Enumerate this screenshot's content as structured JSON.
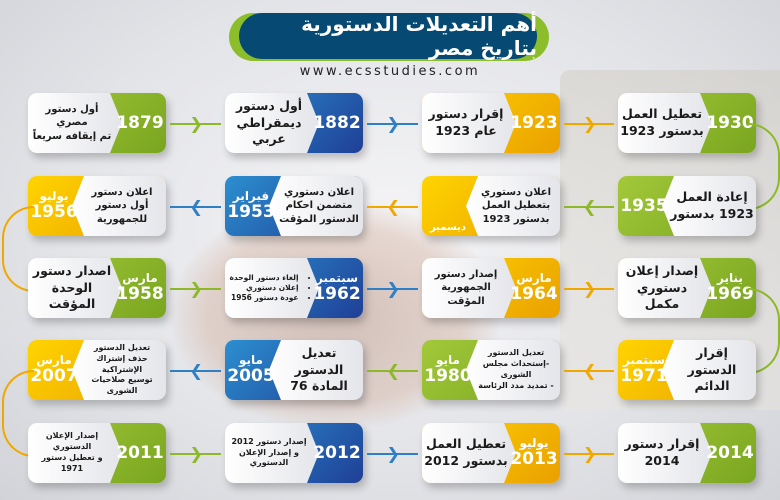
{
  "header": {
    "title": "أهم التعديلات الدستورية بتاريخ مصر",
    "website": "www.ecsstudies.com"
  },
  "colors": {
    "green": "#8cb82a",
    "blue": "#2456a8",
    "yellow": "#f2b600",
    "title_bg": "#064a74"
  },
  "rows": [
    {
      "direction": "right",
      "cards": [
        {
          "year": "1879",
          "month": "",
          "color": "green",
          "lines": [
            "أول دستور مصري",
            "تم إيقافه سريعاً"
          ]
        },
        {
          "year": "1882",
          "month": "",
          "color": "blue",
          "lines": [
            "أول دستور",
            "ديمقراطي عربي"
          ]
        },
        {
          "year": "1923",
          "month": "",
          "color": "yellow",
          "lines": [
            "إقرار دستور",
            "عام 1923"
          ]
        },
        {
          "year": "1930",
          "month": "",
          "color": "green",
          "lines": [
            "تعطيل العمل",
            "بدستور 1923"
          ]
        }
      ]
    },
    {
      "direction": "left",
      "cards": [
        {
          "year": "1956",
          "month": "يوليو",
          "color": "yellow",
          "lines": [
            "اعلان دستور",
            "أول دستور",
            "للجمهورية"
          ]
        },
        {
          "year": "1953",
          "month": "فبراير",
          "color": "blue",
          "lines": [
            "اعلان دستوري",
            "متضمن احكام",
            "الدستور المؤقت"
          ]
        },
        {
          "year": "",
          "month": "ديسمبر",
          "color": "yellow",
          "lines": [
            "اعلان دستوري",
            "بتعطيل العمل",
            "بدستور 1923"
          ]
        },
        {
          "year": "1935",
          "month": "",
          "color": "green",
          "lines": [
            "إعادة العمل",
            "1923 بدستور"
          ]
        }
      ]
    },
    {
      "direction": "right",
      "cards": [
        {
          "year": "1958",
          "month": "مارس",
          "color": "green",
          "lines": [
            "اصدار دستور",
            "الوحدة المؤقت"
          ]
        },
        {
          "year": "1962",
          "month": "سبتمبر",
          "color": "blue",
          "bullets": [
            "إلغاء دستور الوحدة",
            "إعلان دستوري",
            "عودة دستور 1956"
          ]
        },
        {
          "year": "1964",
          "month": "مارس",
          "color": "yellow",
          "lines": [
            "إصدار دستور",
            "الجمهورية المؤقت"
          ]
        },
        {
          "year": "1969",
          "month": "يناير",
          "color": "green",
          "lines": [
            "إصدار إعلان",
            "دستوري مكمل"
          ]
        }
      ]
    },
    {
      "direction": "left",
      "cards": [
        {
          "year": "2007",
          "month": "مارس",
          "color": "yellow",
          "lines": [
            "تعديل الدستور",
            "حذف إشتراك الإشتراكية",
            "توسيع صلاحيات الشورى"
          ]
        },
        {
          "year": "2005",
          "month": "مايو",
          "color": "blue",
          "lines": [
            "تعديل الدستور",
            "المادة 76"
          ]
        },
        {
          "year": "1980",
          "month": "مايو",
          "color": "green",
          "lines": [
            "تعديل الدستور",
            "-إستحداث مجلس الشورى",
            "- تمديد مدد الرئاسة"
          ]
        },
        {
          "year": "1971",
          "month": "سبتمبر",
          "color": "yellow",
          "lines": [
            "إقرار الدستور",
            "الدائم"
          ]
        }
      ]
    },
    {
      "direction": "right",
      "cards": [
        {
          "year": "2011",
          "month": "",
          "color": "green",
          "lines": [
            "إصدار الإعلان الدستوري",
            "و تعطيل دستور 1971"
          ]
        },
        {
          "year": "2012",
          "month": "",
          "color": "blue",
          "lines": [
            "إصدار دستور 2012",
            "و إصدار الإعلان الدستوري"
          ]
        },
        {
          "year": "2013",
          "month": "يوليو",
          "color": "yellow",
          "lines": [
            "تعطيل العمل",
            "بدستور 2012"
          ]
        },
        {
          "year": "2014",
          "month": "",
          "color": "green",
          "lines": [
            "إقرار دستور",
            "2014"
          ]
        }
      ]
    }
  ]
}
